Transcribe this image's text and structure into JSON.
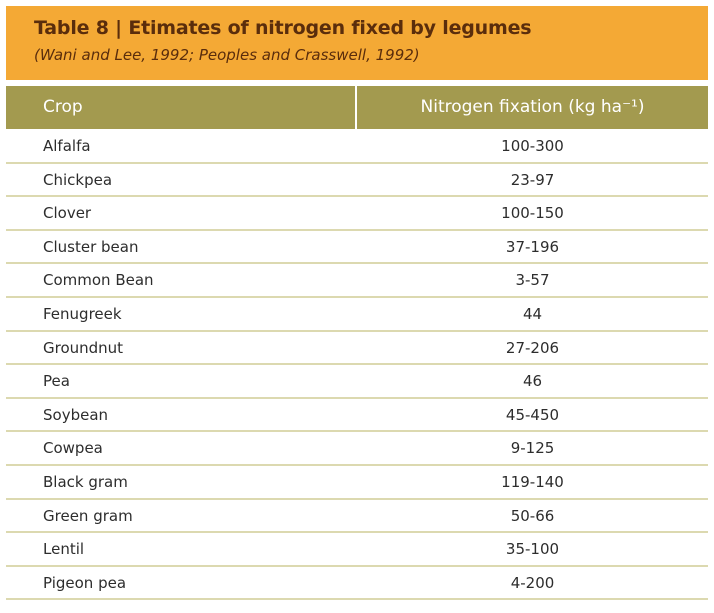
{
  "table": {
    "title": "Table 8 | Etimates of nitrogen fixed by legumes",
    "subtitle": "(Wani and Lee, 1992; Peoples and Crasswell, 1992)",
    "headers": {
      "crop": "Crop",
      "nitrogen": "Nitrogen fixation (kg ha⁻¹)"
    },
    "rows": [
      {
        "crop": "Alfalfa",
        "value": "100-300"
      },
      {
        "crop": "Chickpea",
        "value": "23-97"
      },
      {
        "crop": "Clover",
        "value": "100-150"
      },
      {
        "crop": "Cluster bean",
        "value": "37-196"
      },
      {
        "crop": "Common Bean",
        "value": "3-57"
      },
      {
        "crop": "Fenugreek",
        "value": "44"
      },
      {
        "crop": "Groundnut",
        "value": "27-206"
      },
      {
        "crop": "Pea",
        "value": "46"
      },
      {
        "crop": "Soybean",
        "value": "45-450"
      },
      {
        "crop": "Cowpea",
        "value": "9-125"
      },
      {
        "crop": "Black gram",
        "value": "119-140"
      },
      {
        "crop": "Green gram",
        "value": "50-66"
      },
      {
        "crop": "Lentil",
        "value": "35-100"
      },
      {
        "crop": "Pigeon pea",
        "value": "4-200"
      }
    ]
  }
}
